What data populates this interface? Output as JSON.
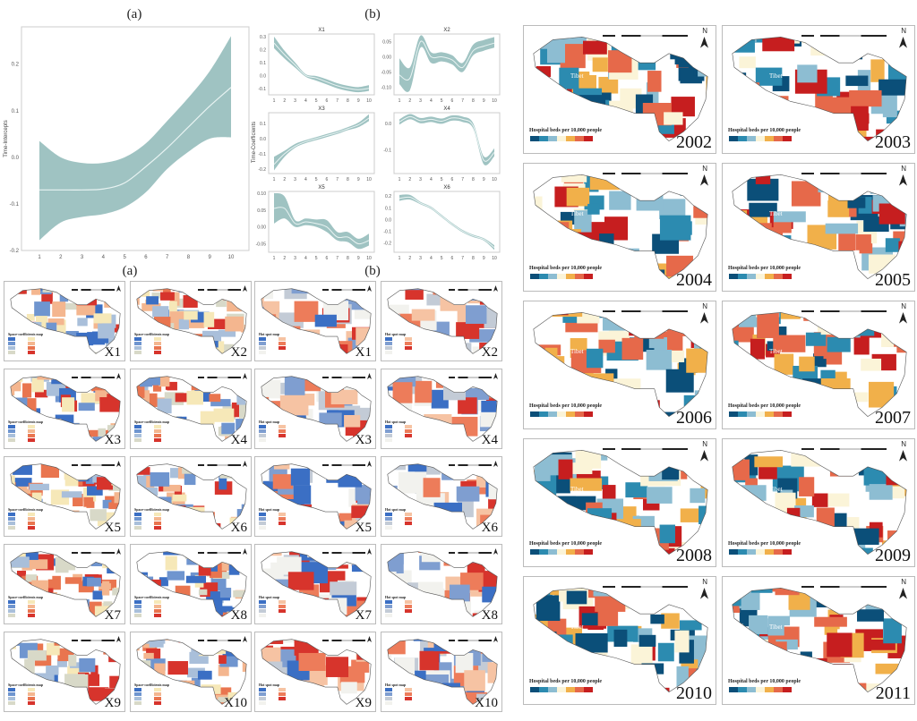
{
  "panel_a_title": "(a)",
  "panel_b_title": "(b)",
  "panel_a2_title": "(a)",
  "panel_b2_title": "(b)",
  "colors": {
    "band": "#9fc3c2",
    "line": "#e8f3f2",
    "frame": "#cccccc",
    "blue_dark": "#3b6fc4",
    "red_dark": "#d7342c",
    "hb_scale": [
      "#0b4f79",
      "#2c8bb0",
      "#8dbdd2",
      "#fbf4d8",
      "#f1b04a",
      "#e6694a",
      "#c61e1f"
    ],
    "coef_scale": [
      "#3b6fc4",
      "#6f95cf",
      "#a9bfda",
      "#d8d9c8",
      "#f6e8b8",
      "#f4b68f",
      "#e9754f",
      "#d7342c"
    ],
    "hot_scale": [
      "#3b6fc4",
      "#7f9ed0",
      "#c3cbd6",
      "#f2f2ee",
      "#f6c3a3",
      "#ed7c5a",
      "#d7342c"
    ]
  },
  "chart_data": [
    {
      "type": "line",
      "id": "time-intercepts",
      "title": "(a)",
      "xlabel": "",
      "ylabel": "Time-Intercepts",
      "x": [
        1,
        2,
        3,
        4,
        5,
        6,
        7,
        8,
        9,
        10
      ],
      "xticks": [
        "1",
        "2",
        "3",
        "4",
        "5",
        "6",
        "7",
        "8",
        "9",
        "10"
      ],
      "yticks": [
        "-0.2",
        "-0.1",
        "0.0",
        "0.1",
        "0.2"
      ],
      "ylim": [
        -0.2,
        0.28
      ],
      "series": [
        {
          "name": "estimate",
          "values": [
            -0.07,
            -0.07,
            -0.07,
            -0.068,
            -0.055,
            -0.02,
            0.02,
            0.065,
            0.11,
            0.15
          ]
        },
        {
          "name": "lower",
          "values": [
            -0.178,
            -0.14,
            -0.128,
            -0.122,
            -0.107,
            -0.075,
            -0.025,
            0.012,
            0.04,
            0.043
          ]
        },
        {
          "name": "upper",
          "values": [
            0.035,
            0.0,
            -0.012,
            -0.012,
            0.0,
            0.03,
            0.078,
            0.128,
            0.185,
            0.26
          ]
        }
      ]
    },
    {
      "type": "line",
      "id": "time-coefficients",
      "title": "(b)",
      "ylabel": "Time-Coefficients",
      "xticks": [
        "1",
        "2",
        "3",
        "4",
        "5",
        "6",
        "7",
        "8",
        "9",
        "10"
      ],
      "x": [
        1,
        2,
        3,
        4,
        5,
        6,
        7,
        8,
        9,
        10
      ],
      "panels": [
        {
          "name": "X1",
          "yticks": [
            "-0.1",
            "0.0",
            "0.1",
            "0.2",
            "0.3"
          ],
          "ylim": [
            -0.15,
            0.32
          ],
          "values": [
            0.25,
            0.16,
            0.08,
            0.0,
            -0.02,
            -0.05,
            -0.08,
            -0.1,
            -0.11,
            -0.1
          ],
          "lower": [
            0.21,
            0.13,
            0.06,
            -0.01,
            -0.04,
            -0.07,
            -0.1,
            -0.12,
            -0.13,
            -0.12
          ],
          "upper": [
            0.3,
            0.19,
            0.1,
            0.01,
            -0.005,
            -0.03,
            -0.06,
            -0.08,
            -0.09,
            -0.075
          ]
        },
        {
          "name": "X2",
          "yticks": [
            "-0.10",
            "-0.05",
            "0.00",
            "0.05"
          ],
          "ylim": [
            -0.125,
            0.075
          ],
          "values": [
            -0.06,
            -0.07,
            0.05,
            0.0,
            0.0,
            -0.01,
            -0.035,
            0.02,
            0.035,
            0.045
          ],
          "lower": [
            -0.09,
            -0.11,
            0.03,
            -0.02,
            -0.015,
            -0.025,
            -0.05,
            0.005,
            0.02,
            0.03
          ],
          "upper": [
            -0.005,
            -0.035,
            0.07,
            0.015,
            0.015,
            0.005,
            -0.02,
            0.04,
            0.055,
            0.065
          ]
        },
        {
          "name": "X3",
          "yticks": [
            "-0.2",
            "-0.1",
            "0.0",
            "0.1"
          ],
          "ylim": [
            -0.23,
            0.17
          ],
          "values": [
            -0.17,
            -0.1,
            -0.05,
            -0.02,
            0.0,
            0.02,
            0.04,
            0.065,
            0.09,
            0.135
          ],
          "lower": [
            -0.21,
            -0.12,
            -0.06,
            -0.03,
            -0.01,
            0.01,
            0.03,
            0.055,
            0.075,
            0.115
          ],
          "upper": [
            -0.12,
            -0.08,
            -0.035,
            -0.01,
            0.01,
            0.03,
            0.05,
            0.075,
            0.105,
            0.16
          ]
        },
        {
          "name": "X4",
          "yticks": [
            "-0.1",
            "0.0"
          ],
          "ylim": [
            -0.19,
            0.04
          ],
          "values": [
            0.005,
            0.025,
            0.01,
            0.015,
            0.008,
            0.02,
            0.015,
            -0.01,
            -0.14,
            -0.11
          ],
          "lower": [
            -0.005,
            0.015,
            0.0,
            0.005,
            -0.002,
            0.01,
            0.005,
            -0.02,
            -0.155,
            -0.125
          ],
          "upper": [
            0.015,
            0.035,
            0.02,
            0.025,
            0.018,
            0.03,
            0.025,
            0.0,
            -0.125,
            -0.095
          ]
        },
        {
          "name": "X5",
          "yticks": [
            "-0.05",
            "0.00",
            "0.05",
            "0.10"
          ],
          "ylim": [
            -0.075,
            0.105
          ],
          "values": [
            0.055,
            0.055,
            0.01,
            0.015,
            0.01,
            0.0,
            -0.03,
            -0.03,
            -0.05,
            -0.04
          ],
          "lower": [
            0.01,
            0.025,
            0.0,
            0.005,
            0.0,
            -0.015,
            -0.04,
            -0.045,
            -0.065,
            -0.055
          ],
          "upper": [
            0.1,
            0.09,
            0.02,
            0.025,
            0.022,
            0.02,
            -0.015,
            -0.015,
            -0.035,
            -0.02
          ]
        },
        {
          "name": "X6",
          "yticks": [
            "-0.2",
            "-0.1",
            "0.0",
            "0.1",
            "0.2"
          ],
          "ylim": [
            -0.28,
            0.24
          ],
          "values": [
            0.18,
            0.19,
            0.14,
            0.1,
            0.03,
            -0.04,
            -0.1,
            -0.14,
            -0.17,
            -0.24
          ],
          "lower": [
            0.16,
            0.17,
            0.13,
            0.09,
            0.02,
            -0.05,
            -0.11,
            -0.15,
            -0.18,
            -0.26
          ],
          "upper": [
            0.21,
            0.21,
            0.15,
            0.11,
            0.04,
            -0.03,
            -0.09,
            -0.13,
            -0.16,
            -0.22
          ]
        }
      ]
    }
  ],
  "coef_maps": {
    "legend_title": "Space-coefficients map",
    "labels": [
      "X1",
      "X2",
      "X3",
      "X4",
      "X5",
      "X6",
      "X7",
      "X8",
      "X9",
      "X10"
    ]
  },
  "hot_maps": {
    "legend_title": "Hot spot map",
    "labels": [
      "X1",
      "X2",
      "X3",
      "X4",
      "X5",
      "X6",
      "X7",
      "X8",
      "X9",
      "X10"
    ]
  },
  "hb_maps": {
    "legend_title": "Hospital beds per 10,000 people",
    "north": "N",
    "place_tibet": "Tibet",
    "years": [
      "2002",
      "2003",
      "2004",
      "2005",
      "2006",
      "2007",
      "2008",
      "2009",
      "2010",
      "2011"
    ]
  }
}
